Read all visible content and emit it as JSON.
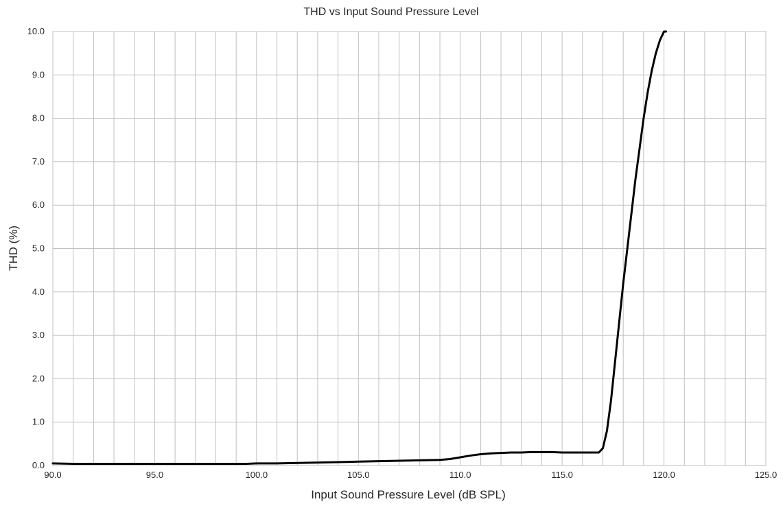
{
  "chart_data": {
    "type": "line",
    "title": "THD vs Input Sound Pressure Level",
    "xlabel": "Input Sound Pressure Level (dB SPL)",
    "ylabel": "THD (%)",
    "xlim": [
      90,
      125
    ],
    "ylim": [
      0,
      10
    ],
    "x_major_ticks": [
      "90.0",
      "95.0",
      "100.0",
      "105.0",
      "110.0",
      "115.0",
      "120.0",
      "125.0"
    ],
    "y_ticks": [
      "0.0",
      "1.0",
      "2.0",
      "3.0",
      "4.0",
      "5.0",
      "6.0",
      "7.0",
      "8.0",
      "9.0",
      "10.0"
    ],
    "x_minor_step": 1,
    "grid": true,
    "legend": "none",
    "line_color": "#000000",
    "grid_color": "#c0c0c0",
    "series": [
      {
        "x": [
          90,
          91,
          92,
          94,
          96,
          98,
          99.5,
          100,
          101,
          102,
          103,
          104,
          105,
          106,
          107,
          108,
          109,
          109.5,
          110,
          110.5,
          111,
          111.5,
          112,
          112.5,
          113,
          113.5,
          114,
          114.5,
          115,
          115.5,
          116,
          116.5,
          116.8,
          117,
          117.2,
          117.4,
          117.6,
          117.8,
          118,
          118.2,
          118.4,
          118.6,
          118.8,
          119,
          119.2,
          119.4,
          119.6,
          119.8,
          120,
          120.1
        ],
        "y": [
          0.05,
          0.04,
          0.04,
          0.04,
          0.04,
          0.04,
          0.04,
          0.05,
          0.05,
          0.06,
          0.07,
          0.08,
          0.09,
          0.1,
          0.11,
          0.12,
          0.13,
          0.15,
          0.19,
          0.23,
          0.26,
          0.28,
          0.29,
          0.3,
          0.3,
          0.31,
          0.31,
          0.31,
          0.3,
          0.3,
          0.3,
          0.3,
          0.3,
          0.4,
          0.8,
          1.5,
          2.4,
          3.3,
          4.2,
          5.0,
          5.8,
          6.6,
          7.3,
          8.0,
          8.6,
          9.1,
          9.5,
          9.8,
          10.0,
          10.0
        ]
      }
    ]
  }
}
